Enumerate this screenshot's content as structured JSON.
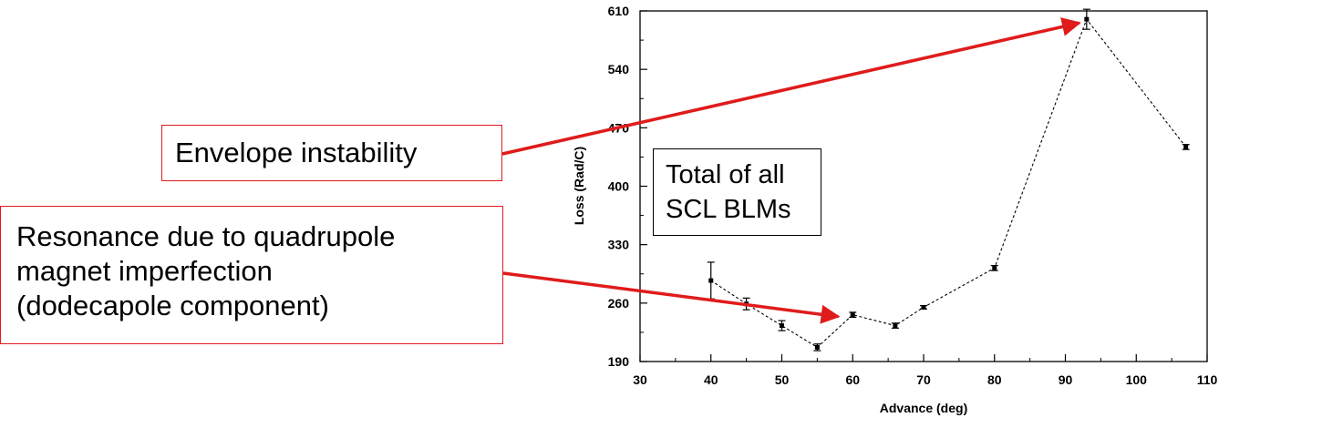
{
  "chart_data": {
    "type": "line",
    "xlabel": "Advance (deg)",
    "ylabel": "Loss (Rad/C)",
    "xlim": [
      30,
      110
    ],
    "ylim": [
      190,
      610
    ],
    "xticks": [
      30,
      40,
      50,
      60,
      70,
      80,
      90,
      100,
      110
    ],
    "yticks": [
      190,
      260,
      330,
      400,
      470,
      540,
      610
    ],
    "series": [
      {
        "name": "Total of all SCL BLMs",
        "points": [
          {
            "x": 40,
            "y": 287,
            "err": 22
          },
          {
            "x": 45,
            "y": 259,
            "err": 7
          },
          {
            "x": 50,
            "y": 233,
            "err": 6
          },
          {
            "x": 55,
            "y": 207,
            "err": 4
          },
          {
            "x": 60,
            "y": 246,
            "err": 3
          },
          {
            "x": 66,
            "y": 233,
            "err": 3
          },
          {
            "x": 70,
            "y": 255,
            "err": 2
          },
          {
            "x": 80,
            "y": 302,
            "err": 3
          },
          {
            "x": 93,
            "y": 600,
            "err": 12
          },
          {
            "x": 107,
            "y": 447,
            "err": 3
          }
        ]
      }
    ],
    "legend_lines": [
      "Total of all",
      "SCL BLMs"
    ],
    "annotations": [
      {
        "lines": [
          "Envelope instability"
        ],
        "target_x": 93,
        "target_y": 600
      },
      {
        "lines": [
          "Resonance due to quadrupole",
          "magnet imperfection",
          "(dodecapole component)"
        ],
        "target_x": 59,
        "target_y": 246
      }
    ],
    "grid": false,
    "colors": {
      "series": "#000000",
      "annotation": "#e01b1b"
    }
  }
}
